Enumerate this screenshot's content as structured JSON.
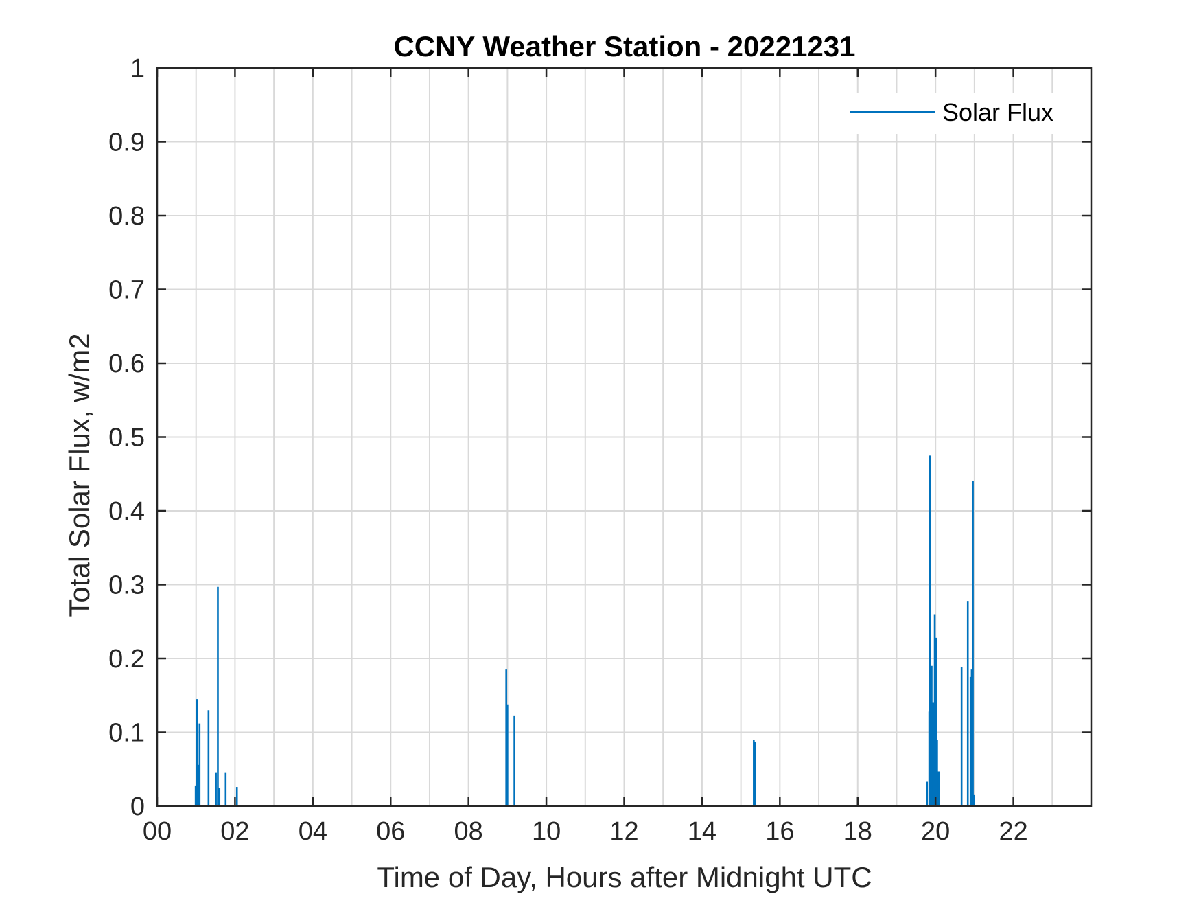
{
  "chart_data": {
    "type": "line",
    "title": "CCNY Weather Station - 20221231",
    "xlabel": "Time of Day, Hours after Midnight UTC",
    "ylabel": "Total Solar Flux, w/m2",
    "xlim": [
      0,
      24
    ],
    "ylim": [
      0,
      1
    ],
    "x_ticks": [
      0,
      2,
      4,
      6,
      8,
      10,
      12,
      14,
      16,
      18,
      20,
      22
    ],
    "x_tick_labels": [
      "00",
      "02",
      "04",
      "06",
      "08",
      "10",
      "12",
      "14",
      "16",
      "18",
      "20",
      "22"
    ],
    "y_ticks": [
      0,
      0.1,
      0.2,
      0.3,
      0.4,
      0.5,
      0.6,
      0.7,
      0.8,
      0.9,
      1
    ],
    "y_tick_labels": [
      "0",
      "0.1",
      "0.2",
      "0.3",
      "0.4",
      "0.5",
      "0.6",
      "0.7",
      "0.8",
      "0.9",
      "1"
    ],
    "grid": true,
    "grid_x_step": 1,
    "legend_position": "top-right",
    "series": [
      {
        "name": "Solar Flux",
        "color": "#0072BD",
        "spikes": [
          [
            0.99,
            0.028
          ],
          [
            1.02,
            0.145
          ],
          [
            1.06,
            0.056
          ],
          [
            1.09,
            0.112
          ],
          [
            1.32,
            0.13
          ],
          [
            1.51,
            0.045
          ],
          [
            1.56,
            0.297
          ],
          [
            1.6,
            0.025
          ],
          [
            1.76,
            0.045
          ],
          [
            2.05,
            0.026
          ],
          [
            8.97,
            0.185
          ],
          [
            9.0,
            0.137
          ],
          [
            9.18,
            0.122
          ],
          [
            15.33,
            0.09
          ],
          [
            15.36,
            0.087
          ],
          [
            19.78,
            0.033
          ],
          [
            19.84,
            0.128
          ],
          [
            19.86,
            0.475
          ],
          [
            19.9,
            0.19
          ],
          [
            19.94,
            0.14
          ],
          [
            19.98,
            0.26
          ],
          [
            20.01,
            0.228
          ],
          [
            20.04,
            0.09
          ],
          [
            20.08,
            0.047
          ],
          [
            20.67,
            0.188
          ],
          [
            20.83,
            0.278
          ],
          [
            20.9,
            0.175
          ],
          [
            20.93,
            0.185
          ],
          [
            20.96,
            0.44
          ],
          [
            20.99,
            0.015
          ]
        ]
      }
    ]
  }
}
